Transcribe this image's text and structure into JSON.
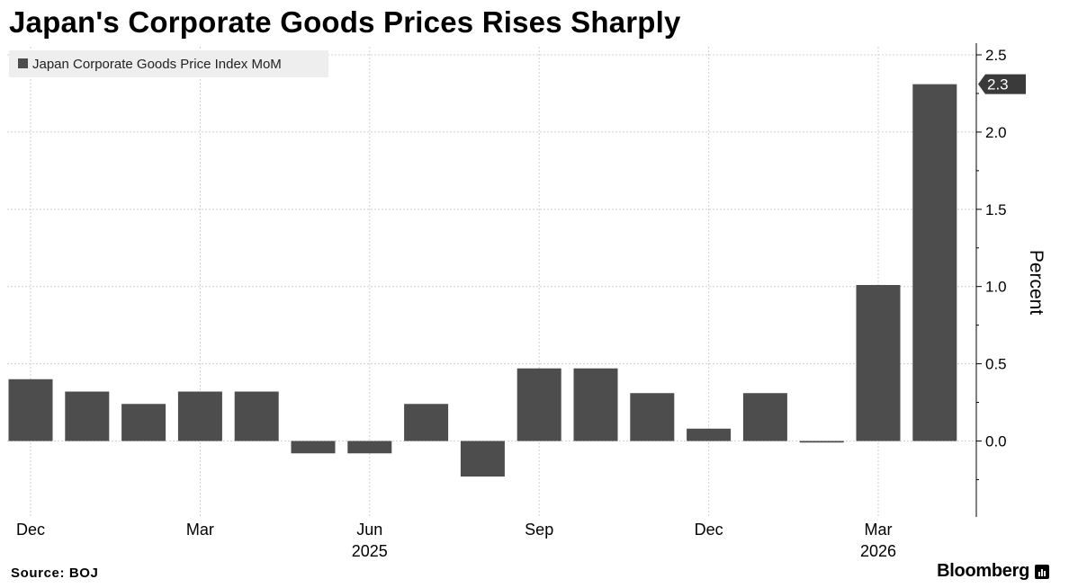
{
  "title": "Japan's Corporate Goods Prices Rises Sharply",
  "source": "Source: BOJ",
  "brand": "Bloomberg",
  "colors": {
    "bar": "#4d4d4d",
    "grid": "#d0d0d0",
    "legend_bg": "#eeeeee",
    "background": "#ffffff"
  },
  "chart_data": {
    "type": "bar",
    "series": [
      {
        "name": "Japan Corporate Goods Price Index MoM",
        "values": [
          0.4,
          0.32,
          0.24,
          0.32,
          0.32,
          -0.08,
          -0.08,
          0.24,
          -0.23,
          0.47,
          0.47,
          0.31,
          0.08,
          0.31,
          -0.01,
          1.01,
          2.31
        ]
      }
    ],
    "categories": [
      "Dec 2024",
      "Jan 2025",
      "Feb 2025",
      "Mar 2025",
      "Apr 2025",
      "May 2025",
      "Jun 2025",
      "Jul 2025",
      "Aug 2025",
      "Sep 2025",
      "Oct 2025",
      "Nov 2025",
      "Dec 2025",
      "Jan 2026",
      "Feb 2026",
      "Mar 2026",
      "Apr 2026"
    ],
    "x_tick_labels": [
      "Dec",
      "Mar",
      "Jun",
      "Sep",
      "Dec",
      "Mar"
    ],
    "x_year_labels": [
      "2025",
      "2026"
    ],
    "ylabel": "Percent",
    "y_ticks": [
      "2.5",
      "2.0",
      "1.5",
      "1.0",
      "0.5",
      "0.0"
    ],
    "ylim": [
      -0.48,
      2.5
    ],
    "last_value_label": "2.3",
    "legend_position": "top-left",
    "grid": true,
    "y_axis_side": "right"
  }
}
